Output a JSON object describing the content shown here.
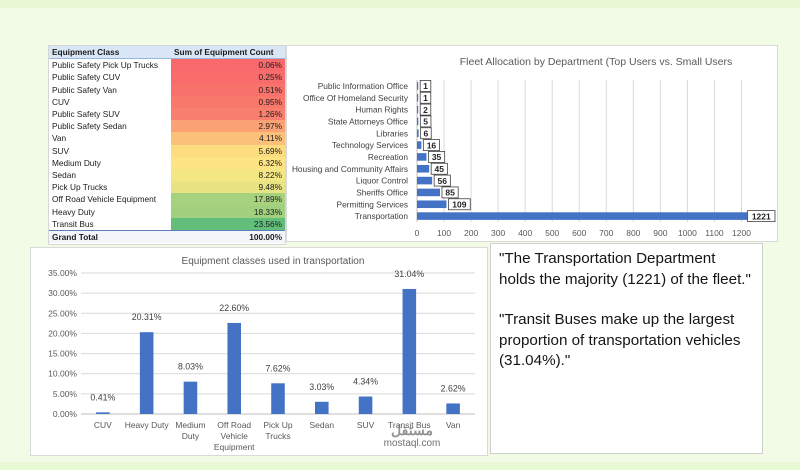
{
  "pivot_table": {
    "headers": [
      "Equipment Class",
      "Sum of Equipment Count"
    ],
    "rows": [
      {
        "label": "Public Safety Pick Up Trucks",
        "value": "0.06%",
        "color": "#f8696b"
      },
      {
        "label": "Public Safety CUV",
        "value": "0.25%",
        "color": "#f86d6b"
      },
      {
        "label": "Public Safety Van",
        "value": "0.51%",
        "color": "#f8716b"
      },
      {
        "label": "CUV",
        "value": "0.95%",
        "color": "#f8786c"
      },
      {
        "label": "Public Safety SUV",
        "value": "1.26%",
        "color": "#f87f6e"
      },
      {
        "label": "Public Safety Sedan",
        "value": "2.97%",
        "color": "#faa274"
      },
      {
        "label": "Van",
        "value": "4.11%",
        "color": "#fbc17a"
      },
      {
        "label": "SUV",
        "value": "5.69%",
        "color": "#fedd80"
      },
      {
        "label": "Medium Duty",
        "value": "6.32%",
        "color": "#fee482"
      },
      {
        "label": "Sedan",
        "value": "8.22%",
        "color": "#f4e783"
      },
      {
        "label": "Pick Up Trucks",
        "value": "9.48%",
        "color": "#e8e483"
      },
      {
        "label": "Off Road Vehicle Equipment",
        "value": "17.89%",
        "color": "#a6d27e"
      },
      {
        "label": "Heavy Duty",
        "value": "18.33%",
        "color": "#a1d07e"
      },
      {
        "label": "Transit Bus",
        "value": "23.56%",
        "color": "#63be7b"
      }
    ],
    "total": {
      "label": "Grand Total",
      "value": "100.00%"
    }
  },
  "chart_data": [
    {
      "type": "bar",
      "orientation": "horizontal",
      "title": "Fleet Allocation by Department (Top Users vs. Small Users",
      "categories": [
        "Public Information Office",
        "Office Of Homeland Security",
        "Human Rights",
        "State Attorneys Office",
        "Libraries",
        "Technology Services",
        "Recreation",
        "Housing and Community Affairs",
        "Liquor Control",
        "Sheriffs Office",
        "Permitting Services",
        "Transportation"
      ],
      "values": [
        1,
        1,
        2,
        5,
        6,
        16,
        35,
        45,
        56,
        85,
        109,
        1221
      ],
      "xlim": [
        0,
        1250
      ],
      "ticks": [
        0,
        100,
        200,
        300,
        400,
        500,
        600,
        700,
        800,
        900,
        1000,
        1100,
        1200
      ],
      "grid": true,
      "color": "#4472c4"
    },
    {
      "type": "bar",
      "title": "Equipment classes used in transportation",
      "categories": [
        "CUV",
        "Heavy Duty",
        "Medium Duty",
        "Off Road Vehicle Equipment",
        "Pick Up Trucks",
        "Sedan",
        "SUV",
        "Transit Bus",
        "Van"
      ],
      "values": [
        0.41,
        20.31,
        8.03,
        22.6,
        7.62,
        3.03,
        4.34,
        31.04,
        2.62
      ],
      "data_labels": [
        "0.41%",
        "20.31%",
        "8.03%",
        "22.60%",
        "7.62%",
        "3.03%",
        "4.34%",
        "31.04%",
        "2.62%"
      ],
      "ylim": [
        0,
        35
      ],
      "ytick_labels": [
        "0.00%",
        "5.00%",
        "10.00%",
        "15.00%",
        "20.00%",
        "25.00%",
        "30.00%",
        "35.00%"
      ],
      "grid": true,
      "color": "#4472c4"
    }
  ],
  "notes": {
    "quote1": "\"The Transportation Department holds the majority (1221) of the fleet.\"",
    "quote2": "\"Transit Buses make up the largest proportion of transportation vehicles (31.04%).\""
  }
}
